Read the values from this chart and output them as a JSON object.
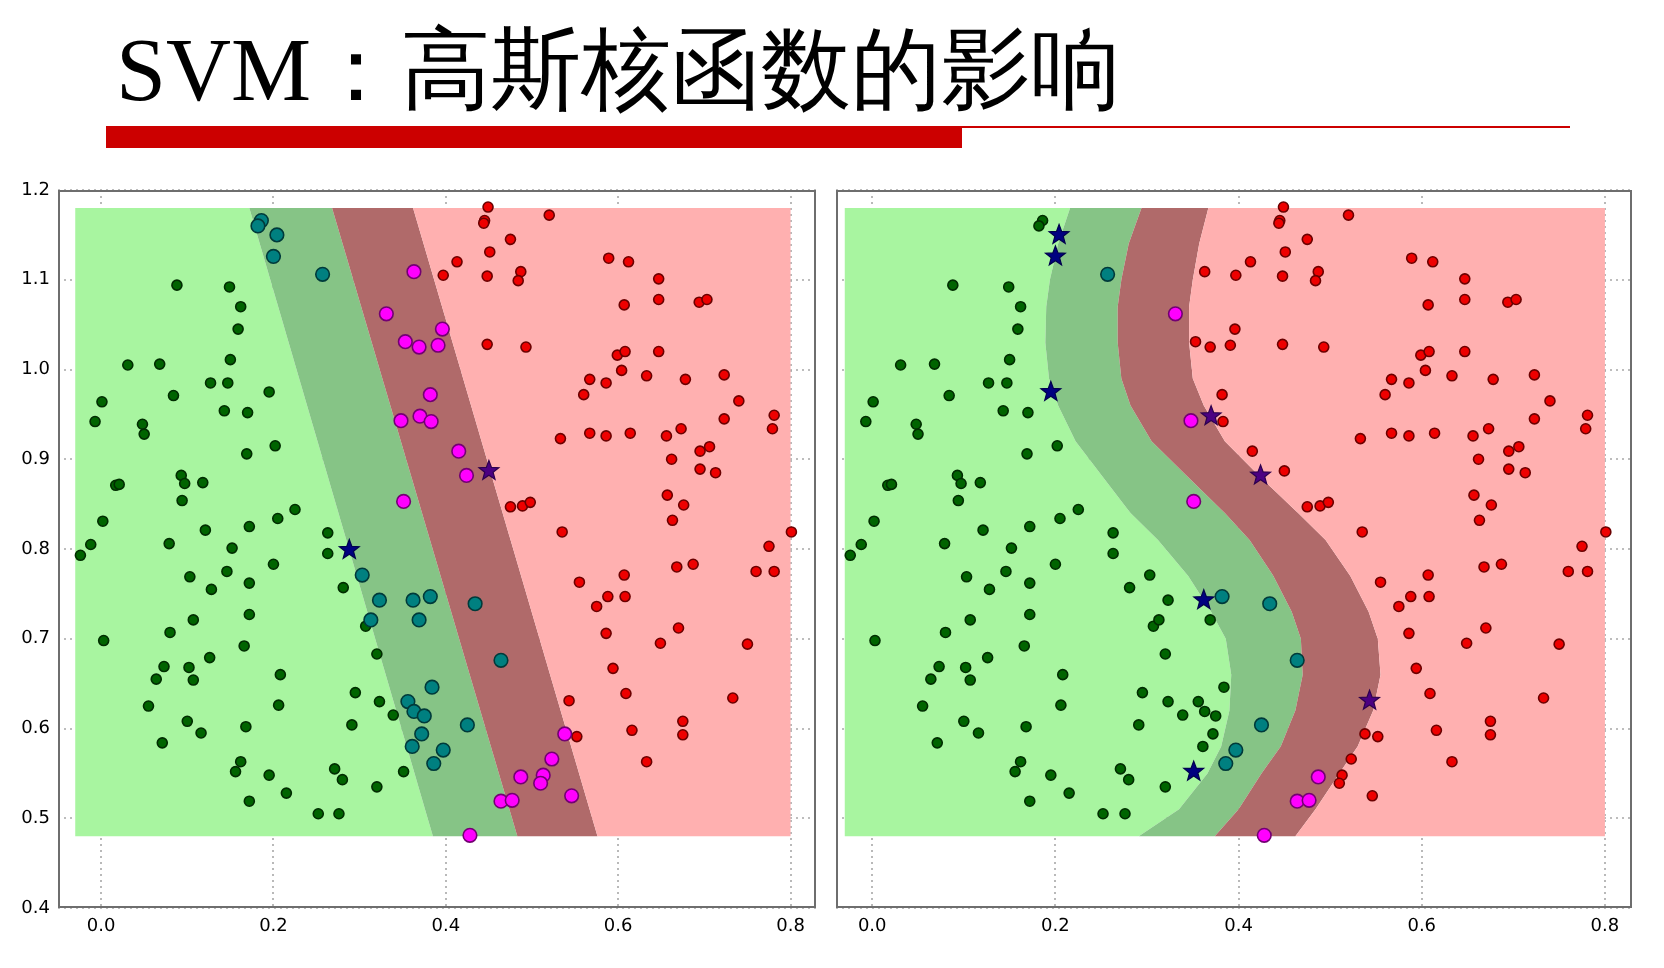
{
  "chart_data": [
    {
      "type": "scatter",
      "title": "SVM：高斯核函数的影响",
      "xlim": [
        -0.05,
        0.83
      ],
      "ylim": [
        0.4,
        1.2
      ],
      "xticks": [
        {
          "value": 0,
          "label": "0.0"
        },
        0.2,
        0.4,
        0.6,
        0.8
      ],
      "yticks": [
        0.4,
        0.5,
        0.6,
        0.7,
        0.8,
        0.9,
        {
          "value": 1,
          "label": "1.0"
        },
        1.1,
        1.2
      ],
      "grid": true,
      "series": [
        {
          "type": "area",
          "color": "#a8f5a0",
          "x": [
            -0.03,
            0.172,
            0.385,
            -0.03
          ],
          "values": [
            1.18,
            1.18,
            0.48,
            0.48
          ]
        },
        {
          "type": "area",
          "color": "#86c486",
          "x": [
            0.172,
            0.268,
            0.483,
            0.385
          ],
          "values": [
            1.18,
            1.18,
            0.48,
            0.48
          ]
        },
        {
          "type": "area",
          "color": "#b06a6a",
          "x": [
            0.268,
            0.362,
            0.576,
            0.483
          ],
          "values": [
            1.18,
            1.18,
            0.48,
            0.48
          ]
        },
        {
          "type": "area",
          "color": "#ffb0b0",
          "x": [
            0.362,
            0.8,
            0.8,
            0.576
          ],
          "values": [
            1.18,
            1.18,
            0.48,
            0.48
          ]
        },
        {
          "marker": "circle",
          "color": "#006400",
          "x": [
            0.088,
            0.149,
            0.162,
            0.159,
            0.031,
            0.068,
            0.15,
            0.127,
            0.147,
            0.195,
            0.084,
            0.001,
            -0.007,
            0.143,
            0.17,
            0.048,
            0.05,
            0.202,
            0.169,
            0.017,
            0.021,
            0.093,
            0.097,
            0.118,
            0.094,
            0.225,
            0.205,
            0.002,
            0.121,
            0.172,
            0.263,
            0.079,
            -0.012,
            0.152,
            -0.024,
            0.263,
            0.2,
            0.146,
            0.103,
            0.172,
            0.128,
            0.281,
            0.172,
            0.107,
            0.08,
            0.307,
            0.003,
            0.166,
            0.126,
            0.32,
            0.073,
            0.102,
            0.107,
            0.064,
            0.208,
            0.295,
            0.055,
            0.206,
            0.323,
            0.339,
            0.1,
            0.116,
            0.168,
            0.291,
            0.071,
            0.162,
            0.156,
            0.195,
            0.271,
            0.28,
            0.215,
            0.172,
            0.32,
            0.351,
            0.252,
            0.276
          ],
          "values": [
            1.094,
            1.092,
            1.07,
            1.045,
            1.005,
            1.006,
            1.011,
            0.985,
            0.985,
            0.975,
            0.971,
            0.964,
            0.942,
            0.954,
            0.952,
            0.939,
            0.928,
            0.915,
            0.906,
            0.871,
            0.872,
            0.882,
            0.873,
            0.874,
            0.854,
            0.844,
            0.834,
            0.831,
            0.821,
            0.825,
            0.818,
            0.806,
            0.805,
            0.801,
            0.793,
            0.795,
            0.783,
            0.775,
            0.769,
            0.762,
            0.755,
            0.757,
            0.727,
            0.721,
            0.707,
            0.714,
            0.698,
            0.692,
            0.679,
            0.683,
            0.669,
            0.668,
            0.654,
            0.655,
            0.66,
            0.64,
            0.625,
            0.626,
            0.63,
            0.615,
            0.608,
            0.595,
            0.602,
            0.604,
            0.584,
            0.563,
            0.552,
            0.548,
            0.555,
            0.543,
            0.528,
            0.519,
            0.535,
            0.552,
            0.505,
            0.505
          ]
        },
        {
          "marker": "circle",
          "color": "#ee0000",
          "x": [
            0.449,
            0.445,
            0.444,
            0.52,
            0.475,
            0.451,
            0.413,
            0.397,
            0.448,
            0.487,
            0.484,
            0.589,
            0.612,
            0.647,
            0.607,
            0.647,
            0.694,
            0.703,
            0.448,
            0.493,
            0.599,
            0.608,
            0.647,
            0.604,
            0.567,
            0.586,
            0.56,
            0.633,
            0.678,
            0.723,
            0.74,
            0.781,
            0.779,
            0.723,
            0.533,
            0.567,
            0.586,
            0.614,
            0.656,
            0.673,
            0.662,
            0.695,
            0.706,
            0.695,
            0.713,
            0.475,
            0.489,
            0.498,
            0.657,
            0.676,
            0.663,
            0.535,
            0.801,
            0.775,
            0.668,
            0.687,
            0.76,
            0.781,
            0.607,
            0.555,
            0.588,
            0.608,
            0.575,
            0.67,
            0.586,
            0.649,
            0.75,
            0.594,
            0.609,
            0.543,
            0.733,
            0.675,
            0.675,
            0.616,
            0.552,
            0.633
          ],
          "values": [
            1.181,
            1.166,
            1.163,
            1.172,
            1.145,
            1.131,
            1.12,
            1.105,
            1.104,
            1.109,
            1.099,
            1.124,
            1.12,
            1.101,
            1.072,
            1.078,
            1.075,
            1.078,
            1.028,
            1.025,
            1.016,
            1.02,
            1.02,
            0.999,
            0.989,
            0.985,
            0.972,
            0.993,
            0.989,
            0.994,
            0.965,
            0.949,
            0.934,
            0.945,
            0.923,
            0.929,
            0.926,
            0.929,
            0.926,
            0.934,
            0.9,
            0.909,
            0.914,
            0.889,
            0.885,
            0.847,
            0.848,
            0.852,
            0.86,
            0.849,
            0.832,
            0.819,
            0.819,
            0.803,
            0.78,
            0.783,
            0.775,
            0.775,
            0.771,
            0.763,
            0.747,
            0.747,
            0.736,
            0.712,
            0.706,
            0.695,
            0.694,
            0.667,
            0.639,
            0.631,
            0.634,
            0.608,
            0.593,
            0.598,
            0.591,
            0.563
          ]
        },
        {
          "marker": "circle",
          "color": "#008080",
          "x": [
            0.186,
            0.182,
            0.204,
            0.2,
            0.257,
            0.303,
            0.323,
            0.362,
            0.382,
            0.313,
            0.369,
            0.384,
            0.356,
            0.363,
            0.375,
            0.372,
            0.361,
            0.397,
            0.386,
            0.434,
            0.464,
            0.425
          ],
          "values": [
            1.166,
            1.16,
            1.15,
            1.126,
            1.106,
            0.771,
            0.743,
            0.743,
            0.747,
            0.721,
            0.721,
            0.646,
            0.63,
            0.619,
            0.614,
            0.594,
            0.58,
            0.576,
            0.561,
            0.739,
            0.676,
            0.604
          ]
        },
        {
          "marker": "circle",
          "color": "#ff00ff",
          "x": [
            0.363,
            0.331,
            0.353,
            0.369,
            0.396,
            0.391,
            0.382,
            0.37,
            0.348,
            0.383,
            0.351,
            0.415,
            0.424,
            0.538,
            0.523,
            0.487,
            0.513,
            0.51,
            0.464,
            0.477,
            0.546,
            0.428
          ],
          "values": [
            1.109,
            1.062,
            1.031,
            1.025,
            1.045,
            1.027,
            0.972,
            0.948,
            0.943,
            0.942,
            0.853,
            0.909,
            0.882,
            0.594,
            0.566,
            0.546,
            0.548,
            0.539,
            0.519,
            0.52,
            0.525,
            0.481
          ]
        },
        {
          "marker": "star",
          "color": "#000080",
          "x": [
            0.288
          ],
          "values": [
            0.799
          ]
        },
        {
          "marker": "star",
          "color": "#4b0082",
          "x": [
            0.45
          ],
          "values": [
            0.887
          ]
        }
      ]
    },
    {
      "type": "scatter",
      "xlim": [
        -0.04,
        0.83
      ],
      "ylim": [
        0.4,
        1.2
      ],
      "xticks": [
        {
          "value": 0,
          "label": "0.0"
        },
        0.2,
        0.4,
        0.6,
        0.8
      ],
      "yticks": [
        0.4,
        0.5,
        0.6,
        0.7,
        0.8,
        0.9,
        1,
        1.1,
        1.2
      ],
      "grid": true,
      "tick_labels": "x",
      "series": [
        {
          "type": "area",
          "color": "#a8f5a0",
          "x": [
            -0.03,
            0.216,
            0.203,
            0.194,
            0.19,
            0.189,
            0.193,
            0.203,
            0.222,
            0.252,
            0.282,
            0.312,
            0.345,
            0.37,
            0.386,
            0.392,
            0.39,
            0.381,
            0.366,
            0.335,
            0.291,
            -0.03
          ],
          "values": [
            1.18,
            1.18,
            1.14,
            1.1,
            1.07,
            1.03,
            0.99,
            0.96,
            0.92,
            0.88,
            0.84,
            0.81,
            0.77,
            0.73,
            0.7,
            0.66,
            0.62,
            0.58,
            0.55,
            0.51,
            0.48,
            0.48
          ]
        },
        {
          "type": "area",
          "color": "#86c486",
          "x": [
            0.216,
            0.203,
            0.194,
            0.19,
            0.189,
            0.193,
            0.203,
            0.222,
            0.252,
            0.282,
            0.312,
            0.345,
            0.37,
            0.386,
            0.392,
            0.39,
            0.381,
            0.366,
            0.335,
            0.291,
            0.374,
            0.4,
            0.425,
            0.446,
            0.462,
            0.47,
            0.468,
            0.458,
            0.438,
            0.412,
            0.385,
            0.345,
            0.305,
            0.282,
            0.272,
            0.268,
            0.268,
            0.272,
            0.28,
            0.294
          ],
          "values": [
            1.18,
            1.14,
            1.1,
            1.07,
            1.03,
            0.99,
            0.96,
            0.92,
            0.88,
            0.84,
            0.81,
            0.77,
            0.73,
            0.7,
            0.66,
            0.62,
            0.58,
            0.55,
            0.51,
            0.48,
            0.48,
            0.51,
            0.55,
            0.58,
            0.62,
            0.66,
            0.7,
            0.73,
            0.77,
            0.81,
            0.84,
            0.88,
            0.92,
            0.96,
            0.99,
            1.03,
            1.07,
            1.1,
            1.14,
            1.18
          ]
        },
        {
          "type": "area",
          "color": "#b06a6a",
          "x": [
            0.294,
            0.28,
            0.272,
            0.268,
            0.268,
            0.272,
            0.282,
            0.305,
            0.345,
            0.385,
            0.412,
            0.438,
            0.458,
            0.468,
            0.47,
            0.462,
            0.446,
            0.425,
            0.4,
            0.374,
            0.462,
            0.484,
            0.51,
            0.53,
            0.547,
            0.555,
            0.552,
            0.542,
            0.522,
            0.495,
            0.465,
            0.424,
            0.385,
            0.362,
            0.35,
            0.346,
            0.346,
            0.35,
            0.357,
            0.367
          ],
          "values": [
            1.18,
            1.14,
            1.1,
            1.07,
            1.03,
            0.99,
            0.96,
            0.92,
            0.88,
            0.84,
            0.81,
            0.77,
            0.73,
            0.7,
            0.66,
            0.62,
            0.58,
            0.55,
            0.51,
            0.48,
            0.48,
            0.51,
            0.55,
            0.58,
            0.62,
            0.66,
            0.7,
            0.73,
            0.77,
            0.81,
            0.84,
            0.88,
            0.92,
            0.96,
            0.99,
            1.03,
            1.07,
            1.1,
            1.14,
            1.18
          ]
        },
        {
          "type": "area",
          "color": "#ffb0b0",
          "x": [
            0.367,
            0.357,
            0.35,
            0.346,
            0.346,
            0.35,
            0.362,
            0.385,
            0.424,
            0.465,
            0.495,
            0.522,
            0.542,
            0.552,
            0.555,
            0.547,
            0.53,
            0.51,
            0.484,
            0.462,
            0.8,
            0.8
          ],
          "values": [
            1.18,
            1.14,
            1.1,
            1.07,
            1.03,
            0.99,
            0.96,
            0.92,
            0.88,
            0.84,
            0.81,
            0.77,
            0.73,
            0.7,
            0.66,
            0.62,
            0.58,
            0.55,
            0.51,
            0.48,
            0.48,
            1.18
          ]
        },
        {
          "marker": "circle",
          "color": "#006400",
          "x": [
            0.088,
            0.149,
            0.162,
            0.159,
            0.031,
            0.068,
            0.15,
            0.127,
            0.147,
            0.084,
            0.001,
            -0.007,
            0.143,
            0.17,
            0.048,
            0.05,
            0.202,
            0.169,
            0.017,
            0.021,
            0.093,
            0.097,
            0.118,
            0.094,
            0.225,
            0.205,
            0.002,
            0.121,
            0.172,
            0.263,
            0.079,
            -0.012,
            0.152,
            -0.024,
            0.263,
            0.2,
            0.146,
            0.103,
            0.172,
            0.128,
            0.281,
            0.172,
            0.107,
            0.08,
            0.307,
            0.003,
            0.166,
            0.126,
            0.32,
            0.073,
            0.102,
            0.107,
            0.064,
            0.208,
            0.295,
            0.055,
            0.206,
            0.323,
            0.339,
            0.1,
            0.116,
            0.168,
            0.291,
            0.071,
            0.162,
            0.156,
            0.195,
            0.271,
            0.28,
            0.215,
            0.172,
            0.32,
            0.252,
            0.276,
            0.186,
            0.182,
            0.303,
            0.323,
            0.313,
            0.369,
            0.384,
            0.356,
            0.363,
            0.375,
            0.372,
            0.361
          ],
          "values": [
            1.094,
            1.092,
            1.07,
            1.045,
            1.005,
            1.006,
            1.011,
            0.985,
            0.985,
            0.971,
            0.964,
            0.942,
            0.954,
            0.952,
            0.939,
            0.928,
            0.915,
            0.906,
            0.871,
            0.872,
            0.882,
            0.873,
            0.874,
            0.854,
            0.844,
            0.834,
            0.831,
            0.821,
            0.825,
            0.818,
            0.806,
            0.805,
            0.801,
            0.793,
            0.795,
            0.783,
            0.775,
            0.769,
            0.762,
            0.755,
            0.757,
            0.727,
            0.721,
            0.707,
            0.714,
            0.698,
            0.692,
            0.679,
            0.683,
            0.669,
            0.668,
            0.654,
            0.655,
            0.66,
            0.64,
            0.625,
            0.626,
            0.63,
            0.615,
            0.608,
            0.595,
            0.602,
            0.604,
            0.584,
            0.563,
            0.552,
            0.548,
            0.555,
            0.543,
            0.528,
            0.519,
            0.535,
            0.505,
            0.505,
            1.166,
            1.16,
            0.771,
            0.743,
            0.721,
            0.721,
            0.646,
            0.63,
            0.619,
            0.614,
            0.594,
            0.58
          ]
        },
        {
          "marker": "circle",
          "color": "#ee0000",
          "x": [
            0.449,
            0.445,
            0.444,
            0.52,
            0.475,
            0.451,
            0.413,
            0.397,
            0.448,
            0.487,
            0.484,
            0.589,
            0.612,
            0.647,
            0.607,
            0.647,
            0.694,
            0.703,
            0.448,
            0.493,
            0.599,
            0.608,
            0.647,
            0.604,
            0.567,
            0.586,
            0.56,
            0.633,
            0.678,
            0.723,
            0.74,
            0.781,
            0.779,
            0.723,
            0.533,
            0.567,
            0.586,
            0.614,
            0.656,
            0.673,
            0.662,
            0.695,
            0.706,
            0.695,
            0.713,
            0.475,
            0.489,
            0.498,
            0.657,
            0.676,
            0.663,
            0.535,
            0.801,
            0.775,
            0.668,
            0.687,
            0.76,
            0.781,
            0.607,
            0.555,
            0.588,
            0.608,
            0.575,
            0.67,
            0.586,
            0.649,
            0.75,
            0.594,
            0.609,
            0.733,
            0.675,
            0.675,
            0.616,
            0.552,
            0.633,
            0.363,
            0.353,
            0.369,
            0.396,
            0.391,
            0.382,
            0.383,
            0.415,
            0.538,
            0.523,
            0.513,
            0.51,
            0.546,
            0.45
          ],
          "values": [
            1.181,
            1.166,
            1.163,
            1.172,
            1.145,
            1.131,
            1.12,
            1.105,
            1.104,
            1.109,
            1.099,
            1.124,
            1.12,
            1.101,
            1.072,
            1.078,
            1.075,
            1.078,
            1.028,
            1.025,
            1.016,
            1.02,
            1.02,
            0.999,
            0.989,
            0.985,
            0.972,
            0.993,
            0.989,
            0.994,
            0.965,
            0.949,
            0.934,
            0.945,
            0.923,
            0.929,
            0.926,
            0.929,
            0.926,
            0.934,
            0.9,
            0.909,
            0.914,
            0.889,
            0.885,
            0.847,
            0.848,
            0.852,
            0.86,
            0.849,
            0.832,
            0.819,
            0.819,
            0.803,
            0.78,
            0.783,
            0.775,
            0.775,
            0.771,
            0.763,
            0.747,
            0.747,
            0.736,
            0.712,
            0.706,
            0.695,
            0.694,
            0.667,
            0.639,
            0.634,
            0.608,
            0.593,
            0.598,
            0.591,
            0.563,
            1.109,
            1.031,
            1.025,
            1.045,
            1.027,
            0.972,
            0.942,
            0.909,
            0.594,
            0.566,
            0.548,
            0.539,
            0.525,
            0.887
          ]
        },
        {
          "marker": "circle",
          "color": "#008080",
          "x": [
            0.257,
            0.382,
            0.434,
            0.464,
            0.425,
            0.397,
            0.386
          ],
          "values": [
            1.106,
            0.747,
            0.739,
            0.676,
            0.604,
            0.576,
            0.561
          ]
        },
        {
          "marker": "circle",
          "color": "#ff00ff",
          "x": [
            0.331,
            0.348,
            0.351,
            0.487,
            0.464,
            0.477,
            0.428
          ],
          "values": [
            1.062,
            0.943,
            0.853,
            0.546,
            0.519,
            0.52,
            0.481
          ]
        },
        {
          "marker": "star",
          "color": "#000080",
          "x": [
            0.204,
            0.2,
            0.195,
            0.362,
            0.351
          ],
          "values": [
            1.15,
            1.126,
            0.975,
            0.743,
            0.552
          ]
        },
        {
          "marker": "star",
          "color": "#4b0082",
          "x": [
            0.37,
            0.424,
            0.543
          ],
          "values": [
            0.948,
            0.882,
            0.631
          ]
        }
      ]
    }
  ]
}
